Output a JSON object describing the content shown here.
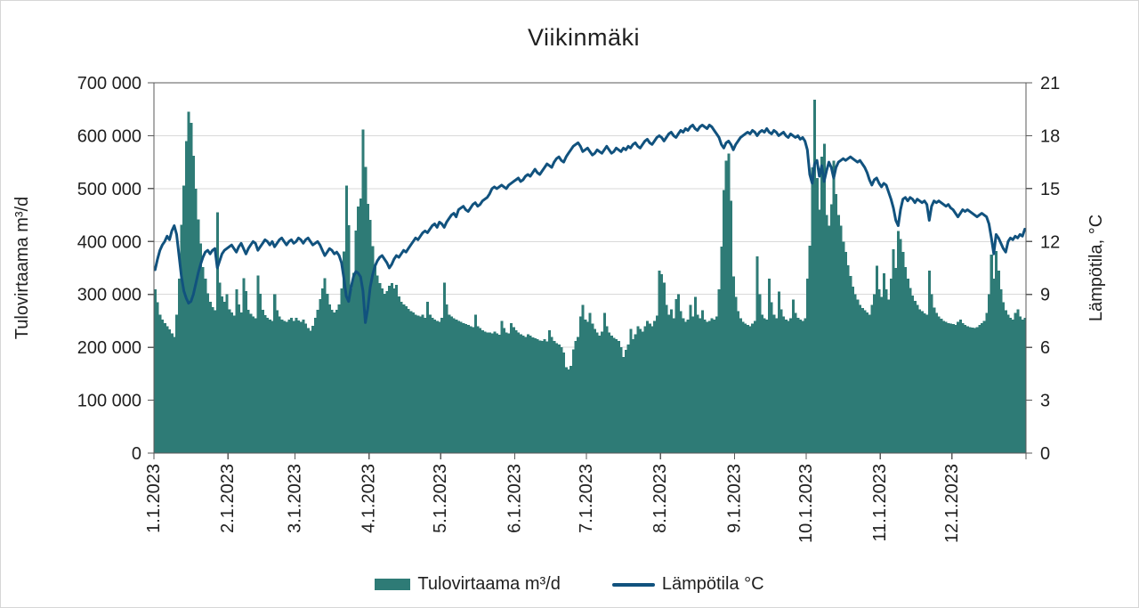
{
  "chart_data": {
    "type": "combo",
    "title": "Viikinmäki",
    "grid": "horizontal",
    "legend_position": "bottom",
    "colors": {
      "bar": "#2e7b76",
      "line": "#11527e",
      "gridline": "#d9d9d9",
      "plot_border": "#595959",
      "text": "#1f1f1f"
    },
    "left_axis": {
      "label": "Tulovirtaama m³/d",
      "min": 0,
      "max": 700000,
      "step": 100000,
      "tick_labels": [
        "0",
        "100 000",
        "200 000",
        "300 000",
        "400 000",
        "500 000",
        "600 000",
        "700 000"
      ]
    },
    "right_axis": {
      "label": "Lämpötila, °C",
      "min": 0,
      "max": 21,
      "step": 3,
      "tick_labels": [
        "0",
        "3",
        "6",
        "9",
        "12",
        "15",
        "18",
        "21"
      ]
    },
    "x_axis": {
      "unit": "daily values, year 2023",
      "tick_labels": [
        "1.1.2023",
        "2.1.2023",
        "3.1.2023",
        "4.1.2023",
        "5.1.2023",
        "6.1.2023",
        "7.1.2023",
        "8.1.2023",
        "9.1.2023",
        "10.1.2023",
        "11.1.2023",
        "12.1.2023"
      ],
      "tick_day_index": [
        0,
        31,
        59,
        90,
        120,
        151,
        181,
        212,
        243,
        273,
        304,
        334
      ],
      "days_total": 365
    },
    "series": [
      {
        "name": "Tulovirtaama m³/d",
        "type": "bar",
        "axis": "left",
        "color": "#2e7b76",
        "values": [
          310000,
          285000,
          262000,
          252000,
          246000,
          240000,
          234000,
          226000,
          220000,
          262000,
          330000,
          432000,
          506000,
          590000,
          645000,
          624000,
          562000,
          500000,
          442000,
          396000,
          352000,
          330000,
          302000,
          286000,
          276000,
          270000,
          455000,
          322000,
          296000,
          286000,
          300000,
          272000,
          266000,
          260000,
          310000,
          281000,
          266000,
          331000,
          306000,
          271000,
          263000,
          258000,
          255000,
          336000,
          301000,
          271000,
          261000,
          256000,
          252000,
          250000,
          300000,
          270000,
          258000,
          252000,
          250000,
          248000,
          252000,
          256000,
          250000,
          256000,
          251000,
          248000,
          252000,
          245000,
          236000,
          231000,
          241000,
          256000,
          271000,
          291000,
          311000,
          331000,
          301000,
          281000,
          271000,
          266000,
          271000,
          281000,
          311000,
          381000,
          506000,
          431000,
          311000,
          341000,
          421000,
          466000,
          481000,
          612000,
          541000,
          471000,
          441000,
          391000,
          356000,
          336000,
          321000,
          311000,
          301000,
          306000,
          316000,
          321000,
          311000,
          318000,
          296000,
          286000,
          281000,
          278000,
          273000,
          268000,
          266000,
          262000,
          260000,
          258000,
          262000,
          256000,
          286000,
          262000,
          256000,
          252000,
          250000,
          248000,
          256000,
          322000,
          281000,
          262000,
          258000,
          255000,
          252000,
          250000,
          248000,
          246000,
          244000,
          242000,
          240000,
          238000,
          262000,
          240000,
          236000,
          232000,
          230000,
          228000,
          228000,
          226000,
          230000,
          226000,
          224000,
          250000,
          236000,
          228000,
          226000,
          246000,
          238000,
          232000,
          228000,
          225000,
          222000,
          220000,
          225000,
          222000,
          219000,
          217000,
          215000,
          213000,
          212000,
          215000,
          211000,
          232000,
          220000,
          212000,
          208000,
          205000,
          200000,
          190000,
          162000,
          158000,
          165000,
          196000,
          212000,
          220000,
          258000,
          280000,
          252000,
          248000,
          265000,
          245000,
          235000,
          228000,
          222000,
          230000,
          265000,
          240000,
          228000,
          222000,
          218000,
          215000,
          212000,
          200000,
          182000,
          195000,
          205000,
          235000,
          215000,
          225000,
          240000,
          235000,
          230000,
          240000,
          250000,
          245000,
          240000,
          250000,
          260000,
          345000,
          338000,
          322000,
          280000,
          262000,
          272000,
          255000,
          291000,
          300000,
          268000,
          255000,
          248000,
          252000,
          280000,
          258000,
          295000,
          262000,
          255000,
          270000,
          252000,
          248000,
          250000,
          255000,
          252000,
          258000,
          310000,
          390000,
          497000,
          553000,
          566000,
          477000,
          334000,
          295000,
          268000,
          255000,
          248000,
          245000,
          242000,
          240000,
          245000,
          250000,
          372000,
          300000,
          262000,
          255000,
          252000,
          330000,
          285000,
          262000,
          255000,
          305000,
          272000,
          258000,
          252000,
          250000,
          255000,
          290000,
          265000,
          256000,
          252000,
          250000,
          255000,
          330000,
          392000,
          540000,
          668000,
          520000,
          460000,
          560000,
          585000,
          450000,
          430000,
          470000,
          553000,
          490000,
          450000,
          430000,
          400000,
          380000,
          355000,
          335000,
          315000,
          300000,
          290000,
          280000,
          274000,
          270000,
          266000,
          262000,
          280000,
          300000,
          354000,
          310000,
          295000,
          340000,
          310000,
          290000,
          330000,
          385000,
          350000,
          420000,
          405000,
          380000,
          352000,
          330000,
          312000,
          298000,
          288000,
          280000,
          272000,
          268000,
          264000,
          262000,
          345000,
          300000,
          275000,
          265000,
          258000,
          254000,
          250000,
          248000,
          246000,
          245000,
          244000,
          242000,
          248000,
          252000,
          246000,
          242000,
          240000,
          238000,
          237000,
          236000,
          238000,
          242000,
          246000,
          250000,
          265000,
          300000,
          375000,
          330000,
          382000,
          345000,
          310000,
          285000,
          270000,
          262000,
          256000,
          252000,
          265000,
          272000,
          258000,
          252000,
          256000
        ]
      },
      {
        "name": "Lämpötila °C",
        "type": "line",
        "axis": "right",
        "color": "#11527e",
        "values": [
          10.4,
          11.0,
          11.5,
          11.8,
          12.0,
          12.3,
          12.1,
          12.6,
          12.9,
          12.4,
          11.2,
          10.0,
          9.2,
          8.8,
          8.5,
          8.6,
          9.0,
          9.6,
          10.2,
          10.7,
          11.1,
          11.4,
          11.5,
          11.3,
          11.5,
          11.6,
          10.5,
          10.9,
          11.3,
          11.5,
          11.6,
          11.7,
          11.8,
          11.6,
          11.4,
          11.7,
          11.9,
          11.6,
          11.3,
          11.6,
          11.8,
          12.0,
          11.9,
          11.5,
          11.7,
          11.9,
          12.1,
          12.0,
          11.8,
          12.0,
          11.7,
          11.9,
          12.1,
          12.2,
          12.0,
          11.8,
          12.0,
          12.1,
          11.9,
          12.0,
          12.2,
          12.1,
          11.9,
          12.1,
          12.2,
          12.0,
          11.8,
          11.9,
          12.0,
          11.8,
          11.5,
          11.2,
          11.4,
          11.6,
          11.5,
          11.3,
          11.4,
          11.2,
          10.8,
          9.9,
          8.9,
          8.6,
          9.4,
          10.0,
          10.3,
          10.2,
          10.0,
          9.2,
          7.4,
          8.2,
          9.4,
          10.1,
          10.6,
          10.9,
          11.1,
          11.2,
          11.0,
          10.8,
          10.5,
          10.7,
          11.0,
          11.2,
          11.1,
          11.3,
          11.5,
          11.4,
          11.6,
          11.8,
          12.0,
          12.2,
          12.1,
          12.3,
          12.5,
          12.6,
          12.5,
          12.7,
          12.9,
          13.0,
          12.8,
          13.1,
          13.0,
          12.8,
          13.1,
          13.3,
          13.5,
          13.6,
          13.4,
          13.8,
          13.9,
          14.0,
          13.8,
          13.7,
          13.9,
          14.1,
          14.2,
          14.0,
          14.1,
          14.3,
          14.4,
          14.5,
          14.7,
          15.0,
          15.1,
          15.0,
          15.1,
          15.2,
          15.1,
          15.0,
          15.2,
          15.3,
          15.4,
          15.5,
          15.6,
          15.4,
          15.5,
          15.7,
          15.8,
          15.7,
          15.9,
          16.1,
          15.9,
          15.8,
          16.0,
          16.2,
          16.4,
          16.3,
          16.2,
          16.5,
          16.7,
          16.8,
          16.6,
          16.5,
          16.8,
          17.0,
          17.2,
          17.4,
          17.5,
          17.6,
          17.4,
          17.1,
          17.2,
          17.3,
          17.1,
          16.9,
          17.0,
          17.2,
          17.1,
          17.0,
          17.2,
          17.4,
          17.2,
          17.0,
          17.1,
          17.3,
          17.2,
          17.1,
          17.3,
          17.2,
          17.4,
          17.3,
          17.5,
          17.6,
          17.4,
          17.3,
          17.5,
          17.7,
          17.8,
          17.6,
          17.5,
          17.7,
          17.9,
          18.0,
          17.9,
          17.7,
          17.9,
          18.1,
          18.2,
          18.0,
          17.9,
          18.1,
          18.3,
          18.2,
          18.4,
          18.3,
          18.5,
          18.6,
          18.4,
          18.3,
          18.5,
          18.6,
          18.5,
          18.4,
          18.6,
          18.5,
          18.3,
          18.1,
          17.9,
          17.5,
          17.3,
          17.6,
          17.7,
          17.5,
          17.2,
          17.5,
          17.7,
          17.9,
          18.0,
          18.1,
          18.2,
          18.1,
          18.3,
          18.2,
          18.0,
          18.2,
          18.3,
          18.2,
          18.4,
          18.2,
          18.1,
          18.3,
          18.2,
          18.0,
          18.1,
          18.2,
          18.0,
          17.9,
          18.1,
          18.0,
          17.9,
          18.0,
          17.8,
          17.9,
          17.7,
          17.2,
          15.8,
          15.3,
          16.4,
          16.6,
          15.7,
          16.3,
          15.4,
          16.0,
          16.5,
          16.2,
          15.6,
          16.2,
          16.5,
          16.6,
          16.7,
          16.6,
          16.7,
          16.8,
          16.7,
          16.6,
          16.5,
          16.6,
          16.4,
          16.2,
          15.9,
          15.5,
          15.2,
          15.5,
          15.6,
          15.3,
          15.1,
          15.3,
          15.2,
          14.8,
          14.4,
          13.9,
          13.2,
          12.9,
          13.8,
          14.4,
          14.5,
          14.3,
          14.5,
          14.4,
          14.2,
          14.4,
          14.3,
          14.2,
          14.3,
          14.1,
          13.2,
          14.0,
          14.3,
          14.2,
          14.3,
          14.2,
          14.1,
          14.0,
          14.1,
          13.9,
          13.8,
          13.6,
          13.4,
          13.6,
          13.8,
          13.7,
          13.8,
          13.7,
          13.6,
          13.5,
          13.4,
          13.5,
          13.6,
          13.5,
          13.4,
          13.0,
          12.2,
          11.3,
          12.4,
          12.2,
          11.9,
          11.6,
          11.4,
          12.0,
          12.2,
          12.1,
          12.3,
          12.2,
          12.4,
          12.3,
          12.7
        ]
      }
    ]
  }
}
